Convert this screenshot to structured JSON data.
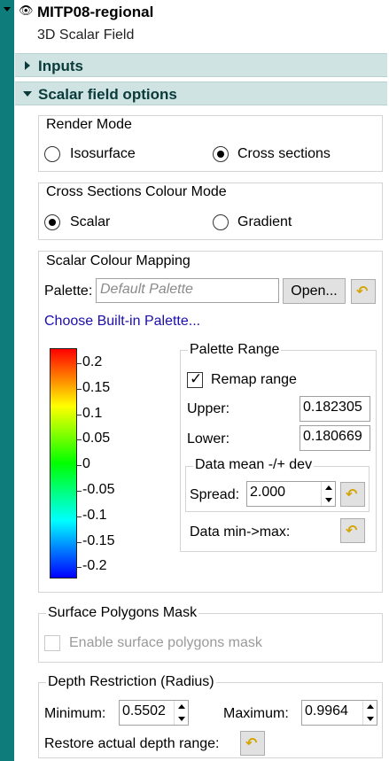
{
  "object": {
    "name": "MITP08-regional",
    "type": "3D Scalar Field"
  },
  "sections": {
    "inputs": "Inputs",
    "scalar_field_options": "Scalar field options"
  },
  "render_mode": {
    "title": "Render Mode",
    "options": [
      "Isosurface",
      "Cross sections"
    ],
    "selected": "Cross sections"
  },
  "cross_sections_colour_mode": {
    "title": "Cross Sections Colour Mode",
    "options": [
      "Scalar",
      "Gradient"
    ],
    "selected": "Scalar"
  },
  "scalar_colour_mapping": {
    "title": "Scalar Colour Mapping",
    "palette_label": "Palette:",
    "palette_placeholder": "Default Palette",
    "open_button": "Open...",
    "builtin_link": "Choose Built-in Palette...",
    "colorbar_ticks": [
      "0.2",
      "0.15",
      "0.1",
      "0.05",
      "0",
      "-0.05",
      "-0.1",
      "-0.15",
      "-0.2"
    ],
    "colorbar_colors": [
      "#ff0000",
      "#ffff00",
      "#00ff00",
      "#00ffff",
      "#0000ff"
    ],
    "palette_range": {
      "title": "Palette Range",
      "remap_label": "Remap range",
      "remap_checked": true,
      "upper_label": "Upper:",
      "upper_value": "0.182305",
      "lower_label": "Lower:",
      "lower_value": "0.180669",
      "mean_dev": {
        "title": "Data mean -/+ dev",
        "spread_label": "Spread:",
        "spread_value": "2.000"
      },
      "minmax_label": "Data min->max:"
    }
  },
  "surface_polygons_mask": {
    "title": "Surface Polygons Mask",
    "enable_label": "Enable surface polygons mask",
    "enabled": false
  },
  "depth_restriction": {
    "title": "Depth Restriction (Radius)",
    "minimum_label": "Minimum:",
    "minimum_value": "0.5502",
    "maximum_label": "Maximum:",
    "maximum_value": "0.9964",
    "restore_label": "Restore actual depth range:"
  },
  "colors": {
    "accent_bar": "#0f7c7c",
    "section_header": "#cfe3e3",
    "link": "#1a0dab",
    "undo_icon": "#d4a400"
  },
  "icons": {
    "visibility": "eye-icon",
    "undo": "undo-arrow-icon"
  }
}
